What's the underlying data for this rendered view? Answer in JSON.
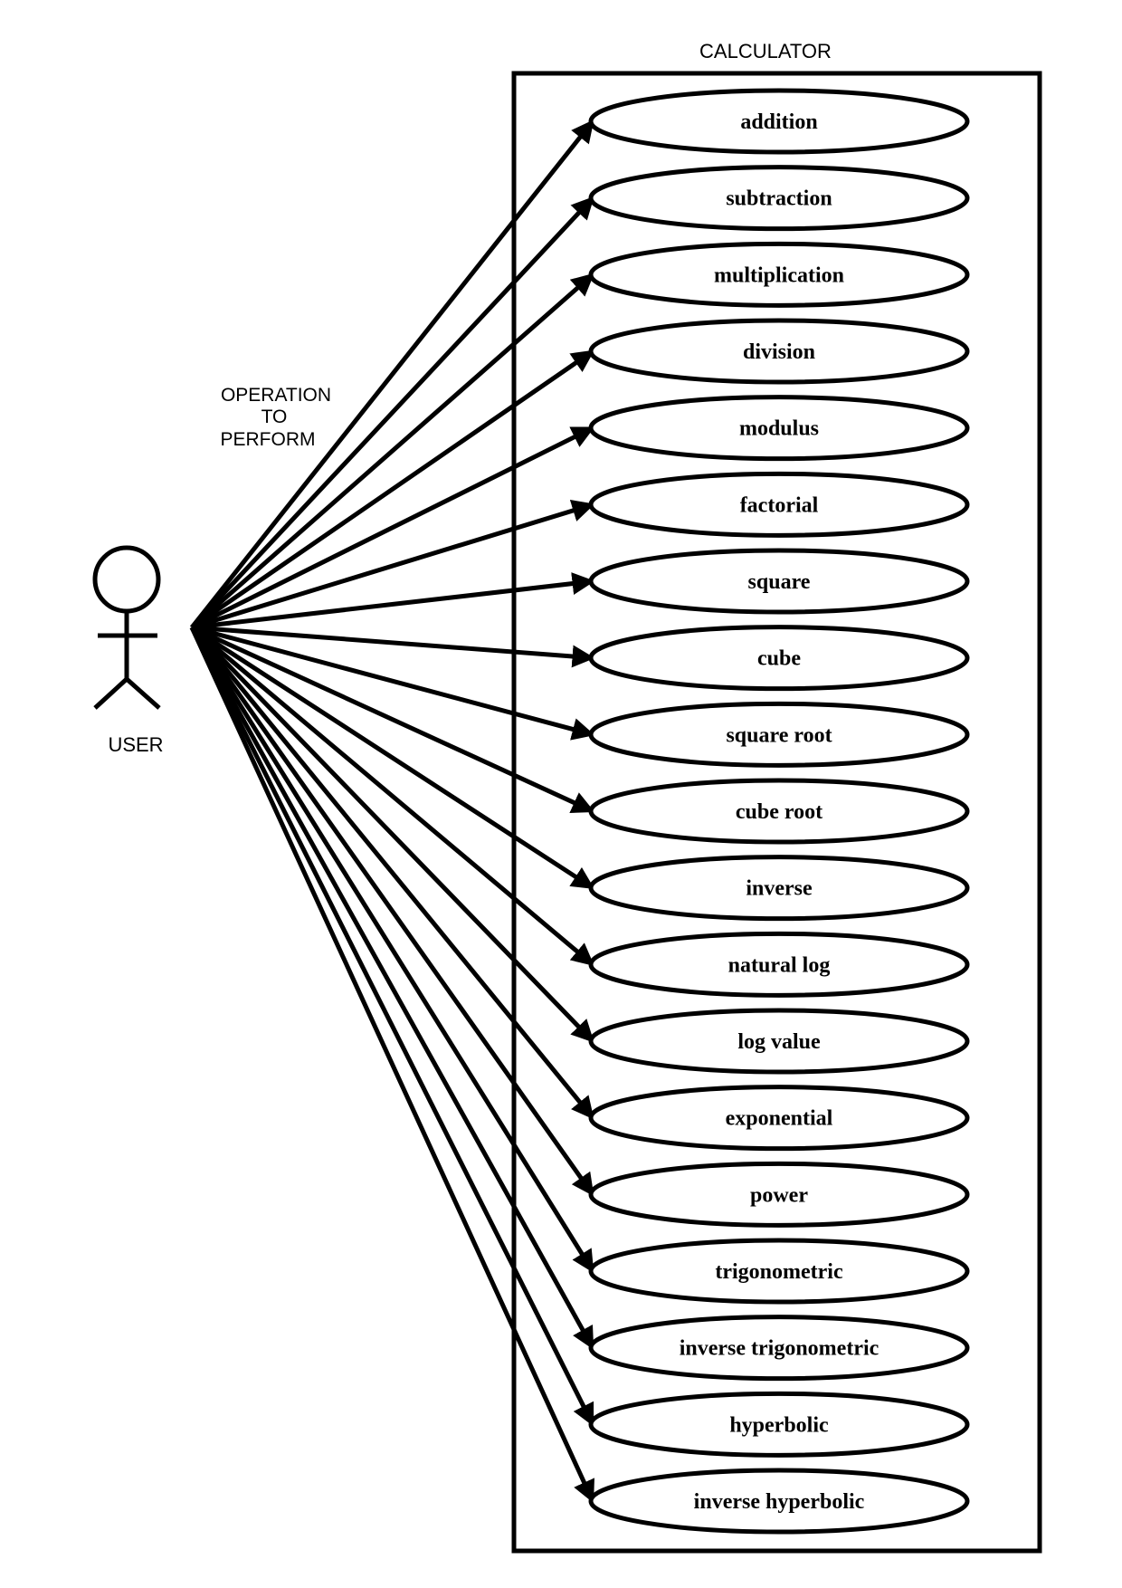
{
  "system": {
    "title": "CALCULATOR"
  },
  "actor": {
    "name": "USER",
    "icon": "stick-figure-icon"
  },
  "association_note": [
    "OPERATION",
    "TO",
    "PERFORM"
  ],
  "use_cases": [
    "addition",
    "subtraction",
    "multiplication",
    "division",
    "modulus",
    "factorial",
    "square",
    "cube",
    "square root",
    "cube root",
    "inverse",
    "natural log",
    "log value",
    "exponential",
    "power",
    "trigonometric",
    "inverse trigonometric",
    "hyperbolic",
    "inverse hyperbolic"
  ],
  "colors": {
    "stroke": "#000000",
    "background": "#ffffff"
  }
}
